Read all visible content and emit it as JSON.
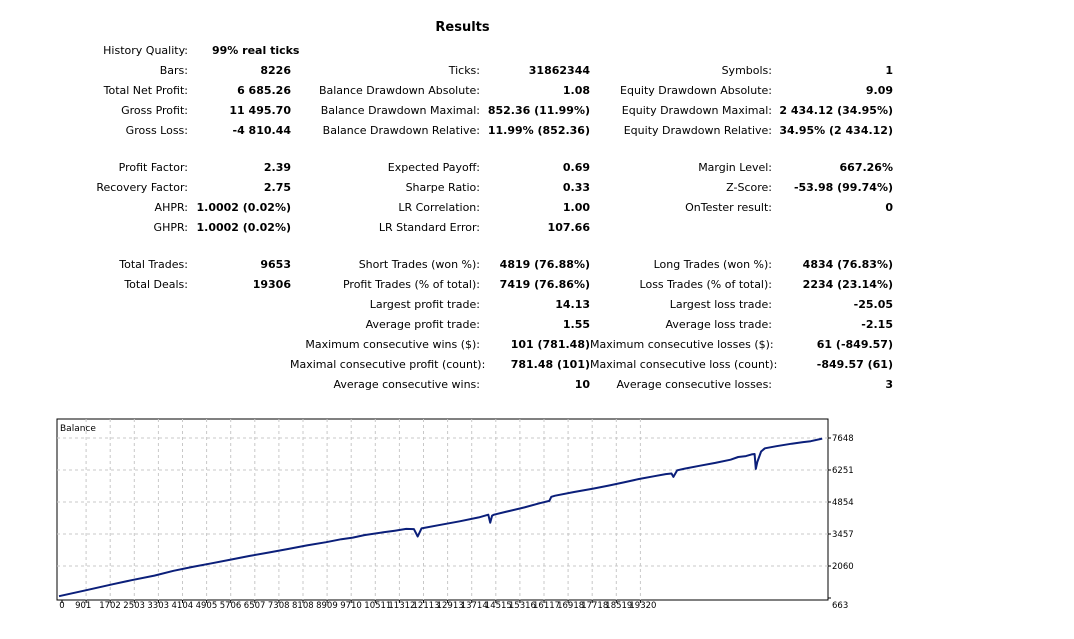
{
  "title": "Results",
  "summary": {
    "history_quality": {
      "label": "History Quality:",
      "value": "99% real ticks"
    },
    "bars": {
      "label": "Bars:",
      "value": "8226"
    },
    "total_net_profit": {
      "label": "Total Net Profit:",
      "value": "6 685.26"
    },
    "gross_profit": {
      "label": "Gross Profit:",
      "value": "11 495.70"
    },
    "gross_loss": {
      "label": "Gross Loss:",
      "value": "-4 810.44"
    },
    "ticks": {
      "label": "Ticks:",
      "value": "31862344"
    },
    "bal_dd_abs": {
      "label": "Balance Drawdown Absolute:",
      "value": "1.08"
    },
    "bal_dd_max": {
      "label": "Balance Drawdown Maximal:",
      "value": "852.36 (11.99%)"
    },
    "bal_dd_rel": {
      "label": "Balance Drawdown Relative:",
      "value": "11.99% (852.36)"
    },
    "symbols": {
      "label": "Symbols:",
      "value": "1"
    },
    "eq_dd_abs": {
      "label": "Equity Drawdown Absolute:",
      "value": "9.09"
    },
    "eq_dd_max": {
      "label": "Equity Drawdown Maximal:",
      "value": "2 434.12 (34.95%)"
    },
    "eq_dd_rel": {
      "label": "Equity Drawdown Relative:",
      "value": "34.95% (2 434.12)"
    }
  },
  "ratios": {
    "profit_factor": {
      "label": "Profit Factor:",
      "value": "2.39"
    },
    "recovery_factor": {
      "label": "Recovery Factor:",
      "value": "2.75"
    },
    "ahpr": {
      "label": "AHPR:",
      "value": "1.0002 (0.02%)"
    },
    "ghpr": {
      "label": "GHPR:",
      "value": "1.0002 (0.02%)"
    },
    "expected_payoff": {
      "label": "Expected Payoff:",
      "value": "0.69"
    },
    "sharpe": {
      "label": "Sharpe Ratio:",
      "value": "0.33"
    },
    "lr_corr": {
      "label": "LR Correlation:",
      "value": "1.00"
    },
    "lr_err": {
      "label": "LR Standard Error:",
      "value": "107.66"
    },
    "margin_level": {
      "label": "Margin Level:",
      "value": "667.26%"
    },
    "zscore": {
      "label": "Z-Score:",
      "value": "-53.98 (99.74%)"
    },
    "ontester": {
      "label": "OnTester result:",
      "value": "0"
    }
  },
  "trades": {
    "total_trades": {
      "label": "Total Trades:",
      "value": "9653"
    },
    "total_deals": {
      "label": "Total Deals:",
      "value": "19306"
    },
    "short_trades": {
      "label": "Short Trades (won %):",
      "value": "4819 (76.88%)"
    },
    "profit_trades": {
      "label": "Profit Trades (% of total):",
      "value": "7419 (76.86%)"
    },
    "largest_profit": {
      "label": "Largest profit trade:",
      "value": "14.13"
    },
    "avg_profit": {
      "label": "Average profit trade:",
      "value": "1.55"
    },
    "max_cons_wins": {
      "label": "Maximum consecutive wins ($):",
      "value": "101 (781.48)"
    },
    "max_cons_profit": {
      "label": "Maximal consecutive profit (count):",
      "value": "781.48 (101)"
    },
    "avg_cons_wins": {
      "label": "Average consecutive wins:",
      "value": "10"
    },
    "long_trades": {
      "label": "Long Trades (won %):",
      "value": "4834 (76.83%)"
    },
    "loss_trades": {
      "label": "Loss Trades (% of total):",
      "value": "2234 (23.14%)"
    },
    "largest_loss": {
      "label": "Largest loss trade:",
      "value": "-25.05"
    },
    "avg_loss": {
      "label": "Average loss trade:",
      "value": "-2.15"
    },
    "max_cons_losses": {
      "label": "Maximum consecutive losses ($):",
      "value": "61 (-849.57)"
    },
    "max_cons_loss": {
      "label": "Maximal consecutive loss (count):",
      "value": "-849.57 (61)"
    },
    "avg_cons_losses": {
      "label": "Average consecutive losses:",
      "value": "3"
    }
  },
  "chart_data": {
    "type": "line",
    "title": "Balance",
    "x_ticks": [
      "0",
      "901",
      "1702",
      "2503",
      "3303",
      "4104",
      "4905",
      "5706",
      "6507",
      "7308",
      "8108",
      "8909",
      "9710",
      "10511",
      "11312",
      "12113",
      "12913",
      "13714",
      "14515",
      "15316",
      "16117",
      "16918",
      "17718",
      "18519",
      "19320"
    ],
    "y_ticks": [
      "7648",
      "6251",
      "4854",
      "3457",
      "2060",
      "663"
    ],
    "xlim": [
      0,
      20100
    ],
    "ylim": [
      663,
      7648
    ],
    "grid": true,
    "line_color": "#0b1f7a",
    "series": [
      {
        "x": [
          0,
          700,
          1400,
          1900,
          2500,
          3000,
          3500,
          4000,
          4500,
          5000,
          5500,
          6000,
          6500,
          7000,
          7400,
          7700,
          8000,
          8500,
          8800,
          9100,
          9300,
          9400,
          9500,
          10000,
          10500,
          11000,
          11250,
          11300,
          11350,
          11400,
          11700,
          12200,
          12600,
          12850,
          12900,
          13000,
          13500,
          14000,
          14400,
          14800,
          15200,
          15600,
          15900,
          16050,
          16100,
          16200,
          16400,
          16800,
          17200,
          17600,
          17800,
          18000,
          18150,
          18230,
          18260,
          18300,
          18400,
          18500,
          18800,
          19200,
          19500,
          19700,
          20000
        ],
        "y": [
          740,
          1000,
          1260,
          1440,
          1640,
          1850,
          2020,
          2180,
          2340,
          2500,
          2650,
          2800,
          2960,
          3100,
          3230,
          3300,
          3410,
          3530,
          3600,
          3680,
          3670,
          3350,
          3700,
          3860,
          4010,
          4180,
          4300,
          3950,
          4260,
          4300,
          4420,
          4620,
          4800,
          4900,
          5080,
          5130,
          5290,
          5440,
          5570,
          5710,
          5860,
          5980,
          6070,
          6100,
          5950,
          6240,
          6310,
          6440,
          6560,
          6700,
          6820,
          6860,
          6930,
          6950,
          6300,
          6600,
          7060,
          7200,
          7290,
          7400,
          7470,
          7510,
          7620
        ]
      }
    ]
  }
}
